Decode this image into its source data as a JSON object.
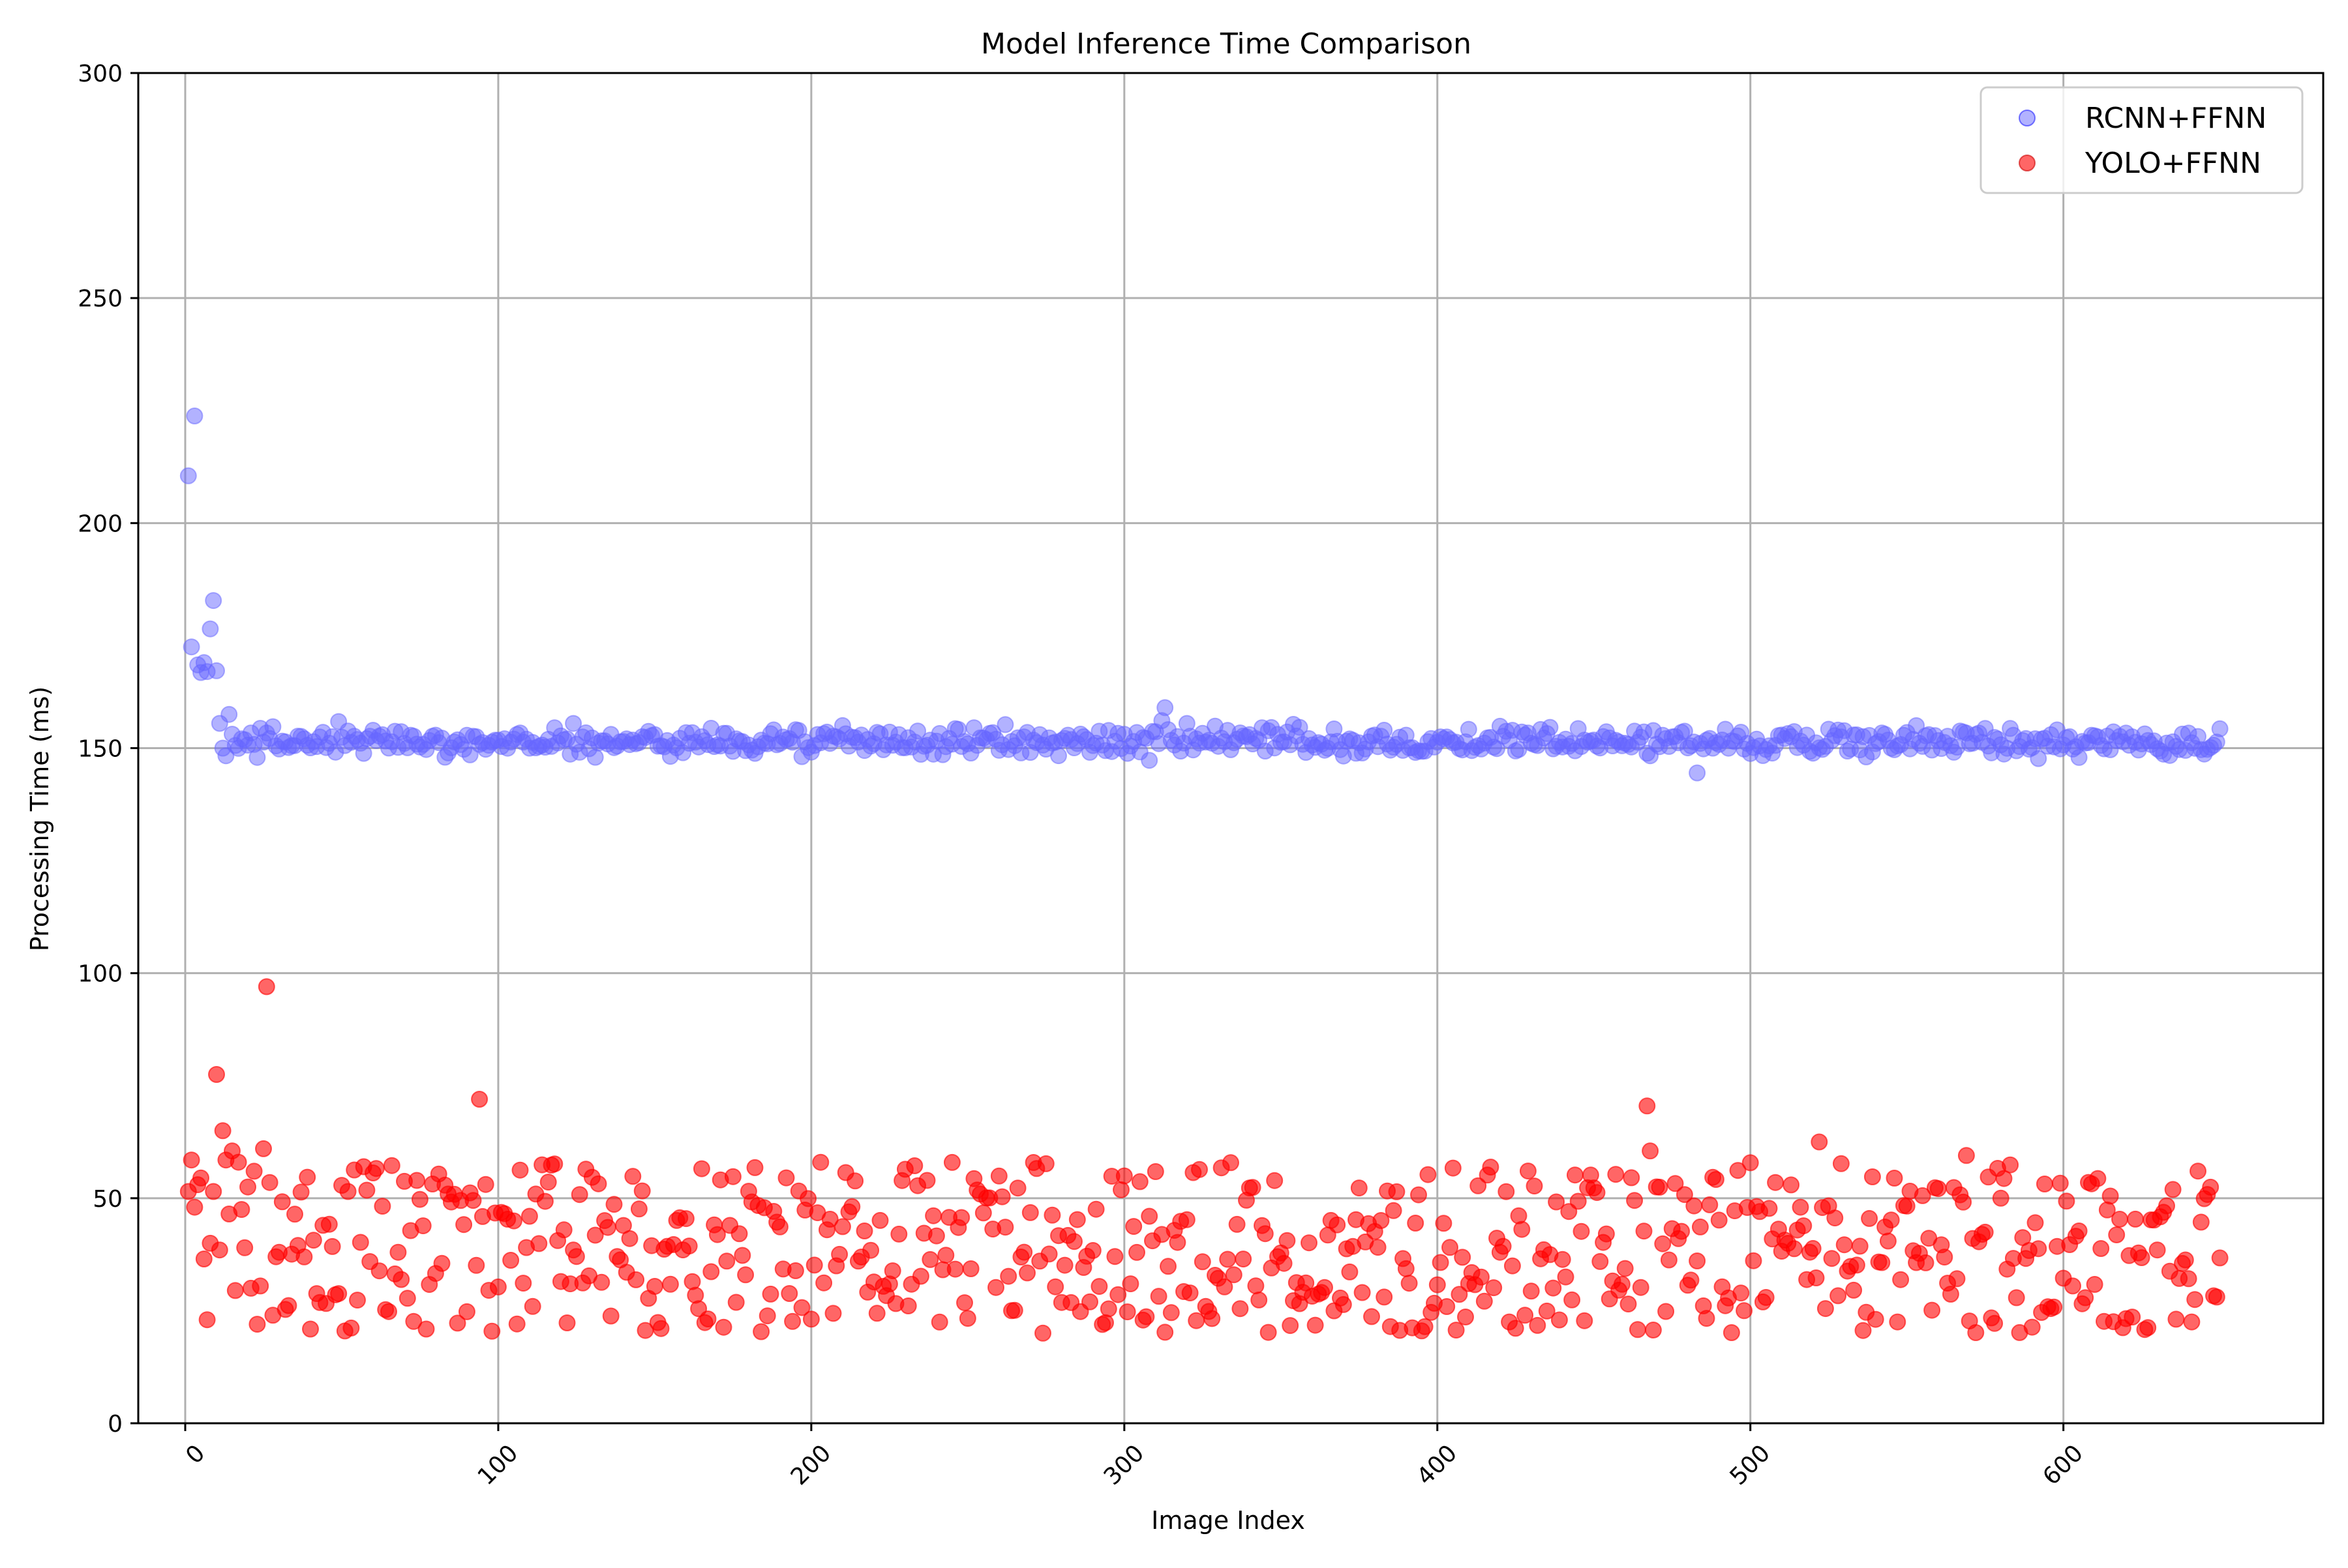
{
  "chart_data": {
    "type": "scatter",
    "title": "Model Inference Time Comparison",
    "xlabel": "Image Index",
    "ylabel": "Processing Time (ms)",
    "xlim": [
      -15,
      683
    ],
    "ylim": [
      0,
      300
    ],
    "x_ticks": [
      0,
      100,
      200,
      300,
      400,
      500,
      600
    ],
    "y_ticks": [
      0,
      50,
      100,
      150,
      200,
      250,
      300
    ],
    "grid": true,
    "legend_position": "top-right",
    "point_count": 650,
    "series": [
      {
        "name": "RCNN+FFNN",
        "color": "#6666ff",
        "opacity": 0.5,
        "head_values": [
          210.5,
          172.5,
          223.8,
          168.5,
          166.8,
          169.0,
          167.0,
          176.5,
          182.8,
          167.2,
          155.5,
          150.0,
          148.3,
          157.5
        ],
        "typical_center": 151.5,
        "typical_spread": 3.2,
        "min_value": 144.5,
        "max_value_after_warmup": 159.0
      },
      {
        "name": "YOLO+FFNN",
        "color": "#ff0000",
        "opacity": 0.6,
        "head_values": [
          51.5,
          58.5,
          48.0,
          53.0,
          54.5,
          36.5,
          23.0,
          40.0,
          51.5,
          77.5,
          38.5,
          65.0,
          58.5,
          46.5,
          60.5,
          29.5,
          58.0,
          47.5,
          39.0,
          52.5,
          30.0,
          56.0,
          22.0,
          30.5,
          61.0,
          97.0,
          53.5,
          24.0,
          37.0,
          38.0
        ],
        "notable_points": [
          [
            93,
            72.0
          ],
          [
            466,
            70.5
          ],
          [
            467,
            60.5
          ],
          [
            521,
            62.5
          ],
          [
            568,
            59.5
          ]
        ],
        "typical_min": 20.0,
        "typical_max": 58.0
      }
    ]
  }
}
